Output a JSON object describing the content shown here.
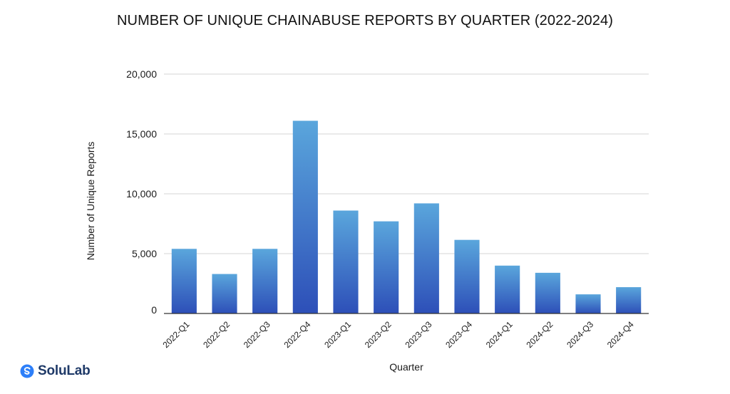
{
  "brand": {
    "logo_text": "SoluLab",
    "logo_color": "#1f3a68",
    "logo_accent": "#2d7ff9"
  },
  "colors": {
    "bar_top": "#5aa6dc",
    "bar_bottom": "#2d4fb8",
    "grid": "#d6d6d6",
    "axis": "#333333"
  },
  "chart_data": {
    "type": "bar",
    "title": "NUMBER OF UNIQUE CHAINABUSE REPORTS BY QUARTER (2022-2024)",
    "xlabel": "Quarter",
    "ylabel": "Number of Unique Reports",
    "ylim": [
      0,
      20000
    ],
    "yticks": [
      0,
      5000,
      10000,
      15000,
      20000
    ],
    "ytick_labels": [
      "0",
      "5,000",
      "10,000",
      "15,000",
      "20,000"
    ],
    "grid": true,
    "categories": [
      "2022-Q1",
      "2022-Q2",
      "2022-Q3",
      "2022-Q4",
      "2023-Q1",
      "2023-Q2",
      "2023-Q3",
      "2023-Q4",
      "2024-Q1",
      "2024-Q2",
      "2024-Q3",
      "2024-Q4"
    ],
    "values": [
      5400,
      3300,
      5400,
      16100,
      8600,
      7700,
      9200,
      6150,
      4000,
      3400,
      1600,
      2200
    ]
  }
}
